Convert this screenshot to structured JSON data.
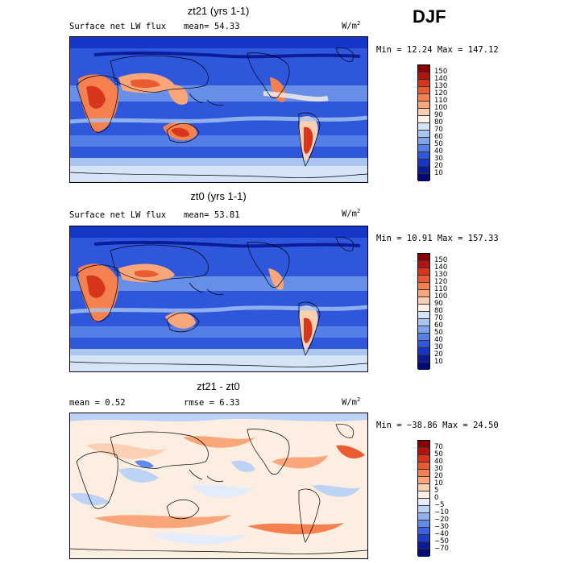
{
  "season": "DJF",
  "panels": [
    {
      "title": "zt21 (yrs 1-1)",
      "left_label": "Surface net LW flux",
      "right_label": "mean=  54.33",
      "units": "W/m",
      "units_exp": "2",
      "minmax": "Min =  12.24 Max = 147.12",
      "levels": [
        "150",
        "140",
        "130",
        "120",
        "110",
        "100",
        "90",
        "80",
        "70",
        "60",
        "50",
        "40",
        "30",
        "20",
        "10"
      ],
      "colors": [
        "#8b0000",
        "#b3140f",
        "#d8361c",
        "#eb5b32",
        "#f4814f",
        "#f9a67a",
        "#fbcfb2",
        "#fdf1e6",
        "#d6e4f7",
        "#a9c6f1",
        "#7fa6ec",
        "#557fe6",
        "#2f57dc",
        "#1636c8",
        "#0b1c9a",
        "#050b73"
      ]
    },
    {
      "title": "zt0 (yrs 1-1)",
      "left_label": "Surface net LW flux",
      "right_label": "mean=  53.81",
      "units": "W/m",
      "units_exp": "2",
      "minmax": "Min =  10.91 Max = 157.33",
      "levels": [
        "150",
        "140",
        "130",
        "120",
        "110",
        "100",
        "90",
        "80",
        "70",
        "60",
        "50",
        "40",
        "30",
        "20",
        "10"
      ],
      "colors": [
        "#8b0000",
        "#b3140f",
        "#d8361c",
        "#eb5b32",
        "#f4814f",
        "#f9a67a",
        "#fbcfb2",
        "#fdf1e6",
        "#d6e4f7",
        "#a9c6f1",
        "#7fa6ec",
        "#557fe6",
        "#2f57dc",
        "#1636c8",
        "#0b1c9a",
        "#050b73"
      ]
    },
    {
      "title": "zt21 - zt0",
      "left_label": "mean =   0.52",
      "right_label": "rmse =   6.33",
      "units": "W/m",
      "units_exp": "2",
      "minmax": "Min = −38.86 Max =  24.50",
      "levels": [
        "70",
        "50",
        "40",
        "30",
        "20",
        "10",
        "5",
        "0",
        "−5",
        "−10",
        "−20",
        "−30",
        "−40",
        "−50",
        "−70"
      ],
      "colors": [
        "#8b0000",
        "#b3140f",
        "#d8361c",
        "#eb5b32",
        "#f4814f",
        "#f9a67a",
        "#fbcfb2",
        "#fdeee2",
        "#e2ecfa",
        "#bcd3f5",
        "#8fb1ef",
        "#628be8",
        "#3a62de",
        "#1b3dc8",
        "#0b1c9a",
        "#050b73"
      ]
    }
  ]
}
